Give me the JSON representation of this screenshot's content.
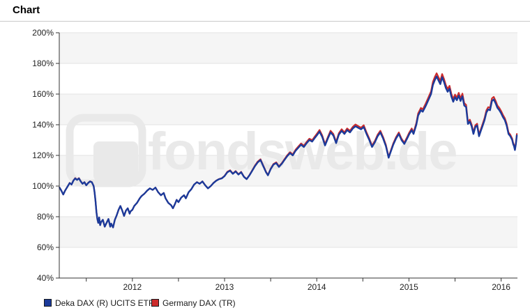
{
  "header": {
    "title": "Chart"
  },
  "watermark": "fondsweb.de",
  "legend": [
    {
      "label": "Deka DAX (R) UCITS ETF",
      "color": "#1b3a9a"
    },
    {
      "label": "Germany DAX (TR)",
      "color": "#cc2b2b"
    }
  ],
  "chart_data": {
    "type": "line",
    "title": "Chart",
    "xlabel": "",
    "ylabel": "",
    "x_unit": "decimal_year",
    "xlim": [
      2011.207,
      2016.177
    ],
    "ylim": [
      40,
      200
    ],
    "grid": "horizontal",
    "legend_position": "bottom-left",
    "band_color": "#f5f5f5",
    "gridline_color": "#e3e3e3",
    "axis_color": "#333333",
    "shaded_bands": [
      [
        180,
        200
      ],
      [
        140,
        160
      ],
      [
        100,
        120
      ],
      [
        60,
        80
      ]
    ],
    "y_ticks": [
      40,
      60,
      80,
      100,
      120,
      140,
      160,
      180,
      200
    ],
    "y_tick_labels": [
      "40%",
      "60%",
      "80%",
      "100%",
      "120%",
      "140%",
      "160%",
      "180%",
      "200%"
    ],
    "x_minor_ticks": [
      2011.5,
      2012,
      2012.5,
      2013,
      2013.5,
      2014,
      2014.5,
      2015,
      2015.5,
      2016
    ],
    "x_label_positions": [
      2012,
      2013,
      2014,
      2015,
      2016
    ],
    "x_tick_labels": [
      "2012",
      "2013",
      "2014",
      "2015",
      "2016"
    ],
    "x": [
      2011.21,
      2011.23,
      2011.25,
      2011.27,
      2011.3,
      2011.32,
      2011.34,
      2011.36,
      2011.38,
      2011.4,
      2011.42,
      2011.44,
      2011.46,
      2011.48,
      2011.5,
      2011.52,
      2011.54,
      2011.56,
      2011.58,
      2011.59,
      2011.6,
      2011.61,
      2011.62,
      2011.63,
      2011.64,
      2011.65,
      2011.66,
      2011.68,
      2011.7,
      2011.72,
      2011.74,
      2011.76,
      2011.77,
      2011.79,
      2011.81,
      2011.83,
      2011.85,
      2011.87,
      2011.89,
      2011.91,
      2011.93,
      2011.95,
      2011.97,
      2011.98,
      2012.0,
      2012.02,
      2012.05,
      2012.08,
      2012.1,
      2012.13,
      2012.16,
      2012.19,
      2012.22,
      2012.25,
      2012.28,
      2012.31,
      2012.34,
      2012.36,
      2012.39,
      2012.42,
      2012.44,
      2012.46,
      2012.48,
      2012.5,
      2012.53,
      2012.56,
      2012.58,
      2012.61,
      2012.64,
      2012.67,
      2012.7,
      2012.73,
      2012.76,
      2012.79,
      2012.82,
      2012.85,
      2012.88,
      2012.91,
      2012.94,
      2012.97,
      2013.0,
      2013.03,
      2013.06,
      2013.09,
      2013.12,
      2013.15,
      2013.18,
      2013.21,
      2013.24,
      2013.27,
      2013.3,
      2013.33,
      2013.36,
      2013.39,
      2013.42,
      2013.45,
      2013.47,
      2013.5,
      2013.53,
      2013.56,
      2013.59,
      2013.62,
      2013.65,
      2013.68,
      2013.71,
      2013.74,
      2013.77,
      2013.8,
      2013.83,
      2013.86,
      2013.89,
      2013.92,
      2013.95,
      2013.98,
      2014.0,
      2014.03,
      2014.06,
      2014.09,
      2014.12,
      2014.15,
      2014.18,
      2014.21,
      2014.24,
      2014.27,
      2014.3,
      2014.33,
      2014.36,
      2014.39,
      2014.42,
      2014.45,
      2014.48,
      2014.51,
      2014.54,
      2014.57,
      2014.6,
      2014.63,
      2014.66,
      2014.69,
      2014.72,
      2014.75,
      2014.78,
      2014.8,
      2014.83,
      2014.86,
      2014.89,
      2014.92,
      2014.95,
      2014.98,
      2015.0,
      2015.03,
      2015.05,
      2015.08,
      2015.1,
      2015.13,
      2015.15,
      2015.18,
      2015.21,
      2015.24,
      2015.26,
      2015.28,
      2015.3,
      2015.32,
      2015.34,
      2015.36,
      2015.38,
      2015.4,
      2015.42,
      2015.44,
      2015.46,
      2015.48,
      2015.5,
      2015.52,
      2015.54,
      2015.56,
      2015.58,
      2015.6,
      2015.62,
      2015.64,
      2015.66,
      2015.68,
      2015.7,
      2015.72,
      2015.74,
      2015.76,
      2015.78,
      2015.8,
      2015.82,
      2015.84,
      2015.86,
      2015.88,
      2015.9,
      2015.92,
      2015.94,
      2015.96,
      2015.98,
      2016.0,
      2016.02,
      2016.04,
      2016.06,
      2016.08,
      2016.1,
      2016.12,
      2016.13,
      2016.14,
      2016.15,
      2016.16,
      2016.17
    ],
    "series": [
      {
        "name": "Deka DAX (R) UCITS ETF",
        "color": "#1b3a9a",
        "values": [
          99,
          97,
          94.5,
          97,
          100,
          102,
          101,
          103.5,
          105,
          104,
          105,
          103,
          101.5,
          102.5,
          100.5,
          102,
          103,
          102.5,
          100,
          96,
          90,
          83,
          78.5,
          76,
          79.5,
          74.5,
          76.5,
          78,
          73.5,
          76,
          78.5,
          73.5,
          75.5,
          73,
          78,
          81,
          84.5,
          87,
          84,
          80.5,
          84,
          85.5,
          82,
          83.5,
          84.5,
          87,
          89,
          92,
          93.5,
          95,
          97,
          98.5,
          97.5,
          99,
          96,
          94,
          95.5,
          92,
          89,
          87.5,
          85.5,
          88,
          91,
          89.5,
          92.5,
          94,
          92,
          96,
          98,
          101,
          102.5,
          101.5,
          103,
          100.5,
          98.5,
          100,
          102,
          103.5,
          104.5,
          105,
          106.5,
          109,
          110,
          108,
          109.5,
          107.5,
          109,
          106,
          104.5,
          107,
          110,
          113,
          115.5,
          117,
          113,
          109,
          107,
          111,
          114,
          115,
          112.5,
          114.5,
          117,
          119.5,
          121.5,
          120,
          123,
          125,
          127,
          125.5,
          128,
          130,
          129,
          131.5,
          133,
          135.5,
          132,
          126.5,
          131,
          135,
          133,
          128,
          133.5,
          136,
          134,
          136.5,
          135,
          137.5,
          139,
          138,
          137,
          138.5,
          134,
          130,
          125.5,
          128.5,
          132.5,
          135,
          131,
          126,
          118.5,
          122,
          127,
          131,
          134,
          130,
          127.5,
          131,
          133.5,
          136.5,
          134,
          140,
          146,
          149.5,
          148.5,
          152,
          156,
          160,
          166,
          169,
          171.5,
          169,
          166.5,
          171,
          168,
          164,
          161.5,
          163.5,
          158.5,
          155,
          158,
          156,
          159,
          155.5,
          158.5,
          152.5,
          151.5,
          140.5,
          142,
          139,
          134,
          138.5,
          139.5,
          132.5,
          136,
          139.5,
          143,
          148,
          150,
          149.5,
          155.5,
          156.5,
          154,
          151,
          149.5,
          147.5,
          145,
          143,
          139.5,
          134,
          132.5,
          130,
          127.5,
          126,
          123.5,
          127.5,
          133
        ]
      },
      {
        "name": "Germany DAX (TR)",
        "color": "#cc2b2b",
        "values": [
          99,
          97,
          94.5,
          97,
          100,
          102.1,
          101,
          103.6,
          105.2,
          104.1,
          105.2,
          103.1,
          101.5,
          102.6,
          100.5,
          102.1,
          103.1,
          102.6,
          100,
          96,
          90,
          83,
          78.5,
          76,
          79.5,
          74.5,
          76.5,
          78,
          73.5,
          76,
          78.5,
          73.5,
          75.5,
          73,
          78,
          81,
          84.5,
          87,
          84,
          80.5,
          84,
          85.5,
          82,
          83.5,
          84.5,
          87,
          89,
          92,
          93.5,
          95,
          97,
          98.5,
          97.5,
          99,
          96,
          94,
          95.5,
          92,
          89,
          87.5,
          85.5,
          88,
          91,
          89.5,
          92.5,
          94,
          92,
          96,
          98,
          101,
          102.6,
          101.5,
          103.1,
          100.5,
          98.5,
          100,
          102.1,
          103.6,
          104.6,
          105.2,
          106.7,
          109.3,
          110.3,
          108.2,
          109.8,
          107.7,
          109.3,
          106.2,
          104.6,
          107.2,
          110.3,
          113.4,
          116,
          117.5,
          113.4,
          109.3,
          107.2,
          111.3,
          114.4,
          115.5,
          112.9,
          114.9,
          117.5,
          120.1,
          122.1,
          120.6,
          123.7,
          125.8,
          127.8,
          126.3,
          128.8,
          130.9,
          129.9,
          132.4,
          134,
          136.6,
          133,
          127.3,
          131.9,
          136.1,
          134,
          128.8,
          134.5,
          137.1,
          135,
          137.6,
          136.1,
          138.6,
          140.2,
          139.1,
          138.1,
          139.7,
          135,
          130.9,
          126.3,
          129.4,
          133.5,
          136.1,
          131.9,
          126.8,
          119.1,
          122.7,
          127.8,
          131.9,
          135,
          130.9,
          128.3,
          131.9,
          134.5,
          137.6,
          135,
          141.2,
          147.4,
          151,
          150,
          153.6,
          157.7,
          161.8,
          168,
          171.1,
          173.6,
          171.1,
          168.5,
          173.1,
          170,
          165.9,
          163.3,
          165.4,
          160.3,
          156.7,
          159.7,
          157.7,
          160.8,
          157.2,
          160.3,
          154.1,
          153,
          141.7,
          143.3,
          140.2,
          135,
          139.7,
          140.7,
          133.5,
          137.1,
          140.7,
          144.3,
          149.4,
          151.5,
          151,
          157.2,
          158.2,
          155.6,
          152.5,
          151,
          148.9,
          146.4,
          144.3,
          140.7,
          135,
          133.5,
          130.9,
          128.3,
          126.8,
          124.2,
          128.3,
          134
        ]
      }
    ]
  }
}
